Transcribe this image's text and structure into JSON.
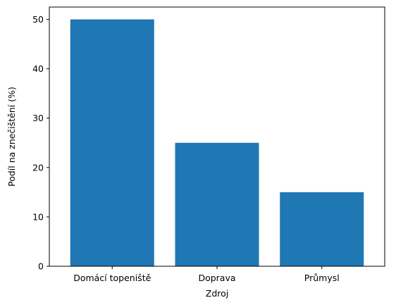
{
  "chart_data": {
    "type": "bar",
    "title": "",
    "xlabel": "Zdroj",
    "ylabel": "Podíl na znečištění (%)",
    "categories": [
      "Domácí topeniště",
      "Doprava",
      "Průmysl"
    ],
    "values": [
      50,
      25,
      15
    ],
    "ylim": [
      0,
      52.5
    ],
    "yticks": [
      0,
      10,
      20,
      30,
      40,
      50
    ],
    "grid": false,
    "bar_color": "#1f77b4"
  }
}
